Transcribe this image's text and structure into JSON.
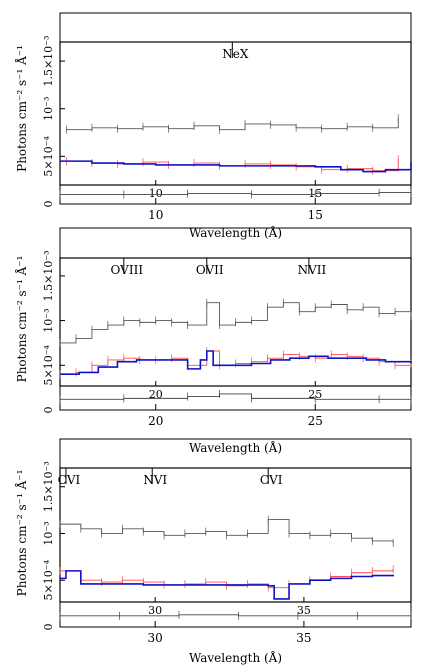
{
  "chart_data": [
    {
      "type": "line",
      "ylabel": "Photons cm⁻² s⁻¹ Å⁻¹",
      "xlabel": "Wavelength (Å)",
      "xlim": [
        7,
        18
      ],
      "ylim": [
        0,
        0.0017
      ],
      "y_ticks": [
        "0",
        "5×10⁻⁴",
        "10⁻³",
        "1.5×10⁻³"
      ],
      "x_ticks": [
        10,
        15
      ],
      "inset_x_ticks": [
        10,
        15
      ],
      "lines": [
        {
          "label": "NeX",
          "x": 12.4
        }
      ],
      "series": [
        {
          "color": "#555555",
          "x": [
            7.2,
            8.0,
            8.8,
            9.6,
            10.4,
            11.2,
            12.0,
            12.8,
            13.6,
            14.4,
            15.2,
            16.0,
            16.8,
            17.6
          ],
          "values": [
            0.00078,
            0.0008,
            0.00079,
            0.00081,
            0.00079,
            0.00082,
            0.00078,
            0.00084,
            0.00083,
            0.0008,
            0.00079,
            0.00081,
            0.0008,
            0.0009
          ]
        },
        {
          "color": "#ff4d4d",
          "x": [
            7.2,
            8.0,
            8.8,
            9.6,
            10.4,
            11.2,
            12.0,
            12.8,
            13.6,
            14.4,
            15.2,
            16.0,
            16.8,
            17.6
          ],
          "values": [
            0.00045,
            0.00043,
            0.00042,
            0.00044,
            0.00041,
            0.00043,
            0.0004,
            0.00042,
            0.00041,
            0.00039,
            0.00036,
            0.00037,
            0.00035,
            0.00047
          ]
        },
        {
          "color": "#1010c8",
          "x": [
            7.0,
            8.0,
            9.0,
            10.0,
            11.0,
            12.0,
            13.0,
            14.0,
            15.0,
            15.8,
            16.5,
            17.2,
            18.0
          ],
          "values": [
            0.00045,
            0.00043,
            0.00042,
            0.00041,
            0.00041,
            0.0004,
            0.0004,
            0.0004,
            0.00039,
            0.00036,
            0.00034,
            0.00036,
            0.00044
          ]
        },
        {
          "color": "#444444",
          "x": [
            7.0,
            9.0,
            11.0,
            13.0,
            15.0,
            17.0,
            18.0
          ],
          "values": [
            0.0001,
            0.0001,
            0.00011,
            0.0001,
            0.00011,
            0.00012,
            0.00012
          ]
        }
      ]
    },
    {
      "type": "line",
      "ylabel": "Photons cm⁻² s⁻¹ Å⁻¹",
      "xlabel": "Wavelength (Å)",
      "xlim": [
        17,
        28
      ],
      "ylim": [
        0,
        0.0017
      ],
      "y_ticks": [
        "0",
        "5×10⁻⁴",
        "10⁻³",
        "1.5×10⁻³"
      ],
      "x_ticks": [
        20,
        25
      ],
      "inset_x_ticks": [
        20,
        25
      ],
      "lines": [
        {
          "label": "OVIII",
          "x": 19.0
        },
        {
          "label": "OVII",
          "x": 21.6
        },
        {
          "label": "NVII",
          "x": 24.8
        }
      ],
      "series": [
        {
          "color": "#555555",
          "x": [
            17.0,
            17.5,
            18.0,
            18.5,
            19.0,
            19.5,
            20.0,
            20.5,
            21.0,
            21.6,
            22.0,
            22.5,
            23.0,
            23.5,
            24.0,
            24.5,
            25.0,
            25.5,
            26.0,
            26.5,
            27.0,
            27.5,
            28.0
          ],
          "values": [
            0.00075,
            0.0008,
            0.0009,
            0.00095,
            0.001,
            0.00098,
            0.001,
            0.00098,
            0.00095,
            0.0012,
            0.00095,
            0.00098,
            0.001,
            0.00115,
            0.0012,
            0.0011,
            0.00115,
            0.00118,
            0.00112,
            0.00115,
            0.00108,
            0.0011,
            0.00105
          ]
        },
        {
          "color": "#ff4d4d",
          "x": [
            17.0,
            17.5,
            18.0,
            18.5,
            19.0,
            19.5,
            20.0,
            20.5,
            21.0,
            21.6,
            22.0,
            22.5,
            23.0,
            23.5,
            24.0,
            24.5,
            25.0,
            25.5,
            26.0,
            26.5,
            27.0,
            27.5,
            28.0
          ],
          "values": [
            0.0004,
            0.00042,
            0.0005,
            0.00056,
            0.00058,
            0.00056,
            0.00056,
            0.00058,
            0.0005,
            0.00066,
            0.0005,
            0.00052,
            0.00054,
            0.00058,
            0.00062,
            0.0006,
            0.00058,
            0.00062,
            0.0006,
            0.00058,
            0.00054,
            0.0005,
            0.00052
          ]
        },
        {
          "color": "#1010c8",
          "x": [
            17.0,
            17.6,
            18.2,
            18.8,
            19.4,
            20.0,
            20.6,
            21.0,
            21.4,
            21.6,
            21.8,
            22.4,
            23.0,
            23.6,
            24.2,
            24.8,
            25.4,
            26.0,
            26.6,
            27.2,
            28.0
          ],
          "values": [
            0.0004,
            0.00042,
            0.00048,
            0.00054,
            0.00056,
            0.00056,
            0.00056,
            0.00046,
            0.00056,
            0.00066,
            0.0005,
            0.0005,
            0.00052,
            0.00056,
            0.00058,
            0.0006,
            0.00058,
            0.00058,
            0.00056,
            0.00054,
            0.00052
          ]
        },
        {
          "color": "#444444",
          "x": [
            17.0,
            19.0,
            21.0,
            22.0,
            23.0,
            25.0,
            27.0,
            28.0
          ],
          "values": [
            0.00012,
            0.00013,
            0.00015,
            0.00018,
            0.00013,
            0.00012,
            0.00012,
            0.00011
          ]
        }
      ]
    },
    {
      "type": "line",
      "ylabel": "Photons cm⁻² s⁻¹ Å⁻¹",
      "xlabel": "Wavelength (Å)",
      "xlim": [
        26.8,
        38.6
      ],
      "ylim": [
        0,
        0.0017
      ],
      "y_ticks": [
        "0",
        "5×10⁻⁴",
        "10⁻³",
        "1.5×10⁻³"
      ],
      "x_ticks": [
        30,
        35
      ],
      "inset_x_ticks": [
        30,
        35
      ],
      "lines": [
        {
          "label": "CVI",
          "x": 27.0
        },
        {
          "label": "NVI",
          "x": 29.9
        },
        {
          "label": "CVI",
          "x": 33.8
        }
      ],
      "series": [
        {
          "color": "#555555",
          "x": [
            26.8,
            27.5,
            28.2,
            28.9,
            29.6,
            30.3,
            31.0,
            31.7,
            32.4,
            33.1,
            33.8,
            34.5,
            35.2,
            35.9,
            36.6,
            37.3,
            38.0
          ],
          "values": [
            0.0011,
            0.00105,
            0.001,
            0.00105,
            0.00102,
            0.00098,
            0.001,
            0.00102,
            0.00098,
            0.001,
            0.00115,
            0.001,
            0.00098,
            0.001,
            0.00095,
            0.00092,
            0.0009
          ]
        },
        {
          "color": "#ff4d4d",
          "x": [
            26.8,
            27.5,
            28.2,
            28.9,
            29.6,
            30.3,
            31.0,
            31.7,
            32.4,
            33.1,
            33.8,
            34.5,
            35.2,
            35.9,
            36.6,
            37.3,
            38.0
          ],
          "values": [
            0.0006,
            0.0005,
            0.00048,
            0.0005,
            0.00048,
            0.00045,
            0.00046,
            0.00048,
            0.00044,
            0.00046,
            0.00042,
            0.00046,
            0.0005,
            0.00054,
            0.00058,
            0.0006,
            0.00062
          ]
        },
        {
          "color": "#1010c8",
          "x": [
            26.8,
            27.0,
            27.5,
            28.2,
            28.9,
            29.6,
            30.3,
            31.0,
            31.7,
            32.4,
            33.1,
            33.8,
            34.0,
            34.5,
            35.2,
            35.9,
            36.6,
            37.3,
            38.0
          ],
          "values": [
            0.00052,
            0.0006,
            0.00046,
            0.00046,
            0.00046,
            0.00045,
            0.00045,
            0.00045,
            0.00045,
            0.00045,
            0.00045,
            0.00044,
            0.0003,
            0.00046,
            0.0005,
            0.00052,
            0.00054,
            0.00055,
            0.00056
          ]
        },
        {
          "color": "#444444",
          "x": [
            26.8,
            28.8,
            30.8,
            32.8,
            34.8,
            36.8,
            38.6
          ],
          "values": [
            0.00012,
            0.00012,
            0.00013,
            0.00012,
            0.00012,
            0.00012,
            0.00012
          ]
        }
      ]
    }
  ]
}
